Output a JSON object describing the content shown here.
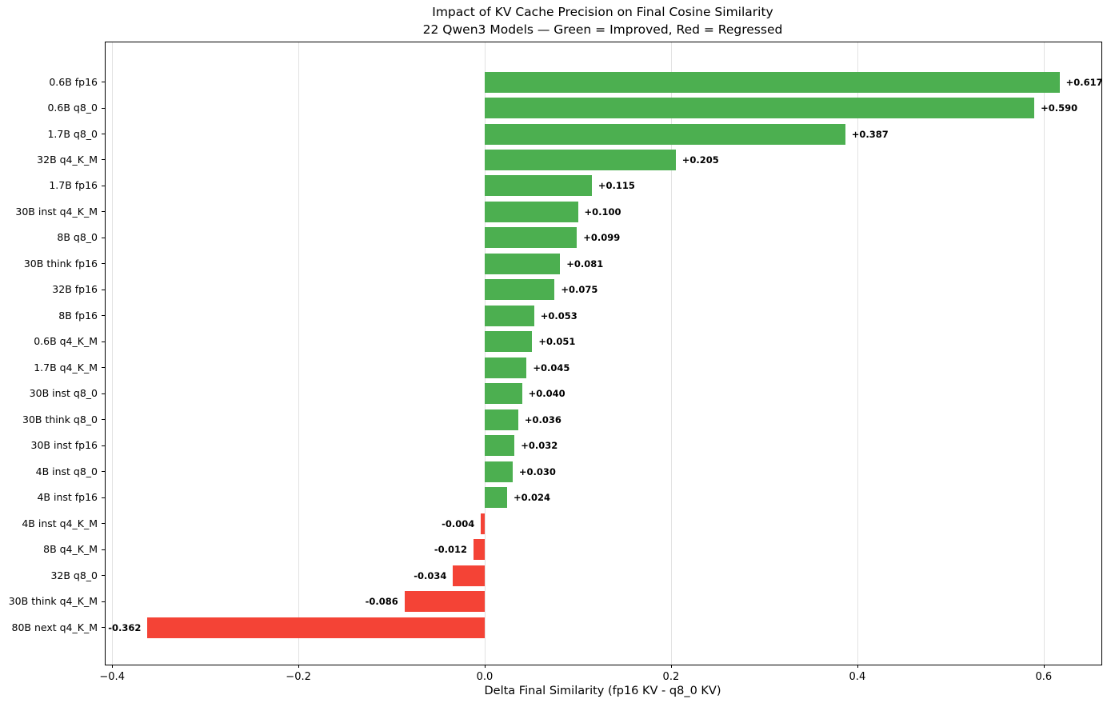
{
  "chart_data": {
    "type": "bar",
    "orientation": "horizontal",
    "title": "Impact of KV Cache Precision on Final Cosine Similarity",
    "subtitle": "22 Qwen3 Models — Green = Improved, Red = Regressed",
    "xlabel": "Delta Final Similarity (fp16 KV - q8_0 KV)",
    "xlim": [
      -0.407,
      0.662
    ],
    "xticks": [
      -0.4,
      -0.2,
      0.0,
      0.2,
      0.4,
      0.6
    ],
    "xtick_labels": [
      "−0.4",
      "−0.2",
      "0.0",
      "0.2",
      "0.4",
      "0.6"
    ],
    "grid": true,
    "legend_position": "none",
    "colors": {
      "improved": "#4caf50",
      "regressed": "#f44336",
      "grid": "#e2e2e2",
      "spine": "#000000"
    },
    "bars": [
      {
        "label": "0.6B fp16",
        "value": 0.617,
        "value_label": "+0.617"
      },
      {
        "label": "0.6B q8_0",
        "value": 0.59,
        "value_label": "+0.590"
      },
      {
        "label": "1.7B q8_0",
        "value": 0.387,
        "value_label": "+0.387"
      },
      {
        "label": "32B q4_K_M",
        "value": 0.205,
        "value_label": "+0.205"
      },
      {
        "label": "1.7B fp16",
        "value": 0.115,
        "value_label": "+0.115"
      },
      {
        "label": "30B inst q4_K_M",
        "value": 0.1,
        "value_label": "+0.100"
      },
      {
        "label": "8B q8_0",
        "value": 0.099,
        "value_label": "+0.099"
      },
      {
        "label": "30B think fp16",
        "value": 0.081,
        "value_label": "+0.081"
      },
      {
        "label": "32B fp16",
        "value": 0.075,
        "value_label": "+0.075"
      },
      {
        "label": "8B fp16",
        "value": 0.053,
        "value_label": "+0.053"
      },
      {
        "label": "0.6B q4_K_M",
        "value": 0.051,
        "value_label": "+0.051"
      },
      {
        "label": "1.7B q4_K_M",
        "value": 0.045,
        "value_label": "+0.045"
      },
      {
        "label": "30B inst q8_0",
        "value": 0.04,
        "value_label": "+0.040"
      },
      {
        "label": "30B think q8_0",
        "value": 0.036,
        "value_label": "+0.036"
      },
      {
        "label": "30B inst fp16",
        "value": 0.032,
        "value_label": "+0.032"
      },
      {
        "label": "4B inst q8_0",
        "value": 0.03,
        "value_label": "+0.030"
      },
      {
        "label": "4B inst fp16",
        "value": 0.024,
        "value_label": "+0.024"
      },
      {
        "label": "4B inst q4_K_M",
        "value": -0.004,
        "value_label": "-0.004"
      },
      {
        "label": "8B q4_K_M",
        "value": -0.012,
        "value_label": "-0.012"
      },
      {
        "label": "32B q8_0",
        "value": -0.034,
        "value_label": "-0.034"
      },
      {
        "label": "30B think q4_K_M",
        "value": -0.086,
        "value_label": "-0.086"
      },
      {
        "label": "80B next q4_K_M",
        "value": -0.362,
        "value_label": "-0.362"
      }
    ]
  }
}
